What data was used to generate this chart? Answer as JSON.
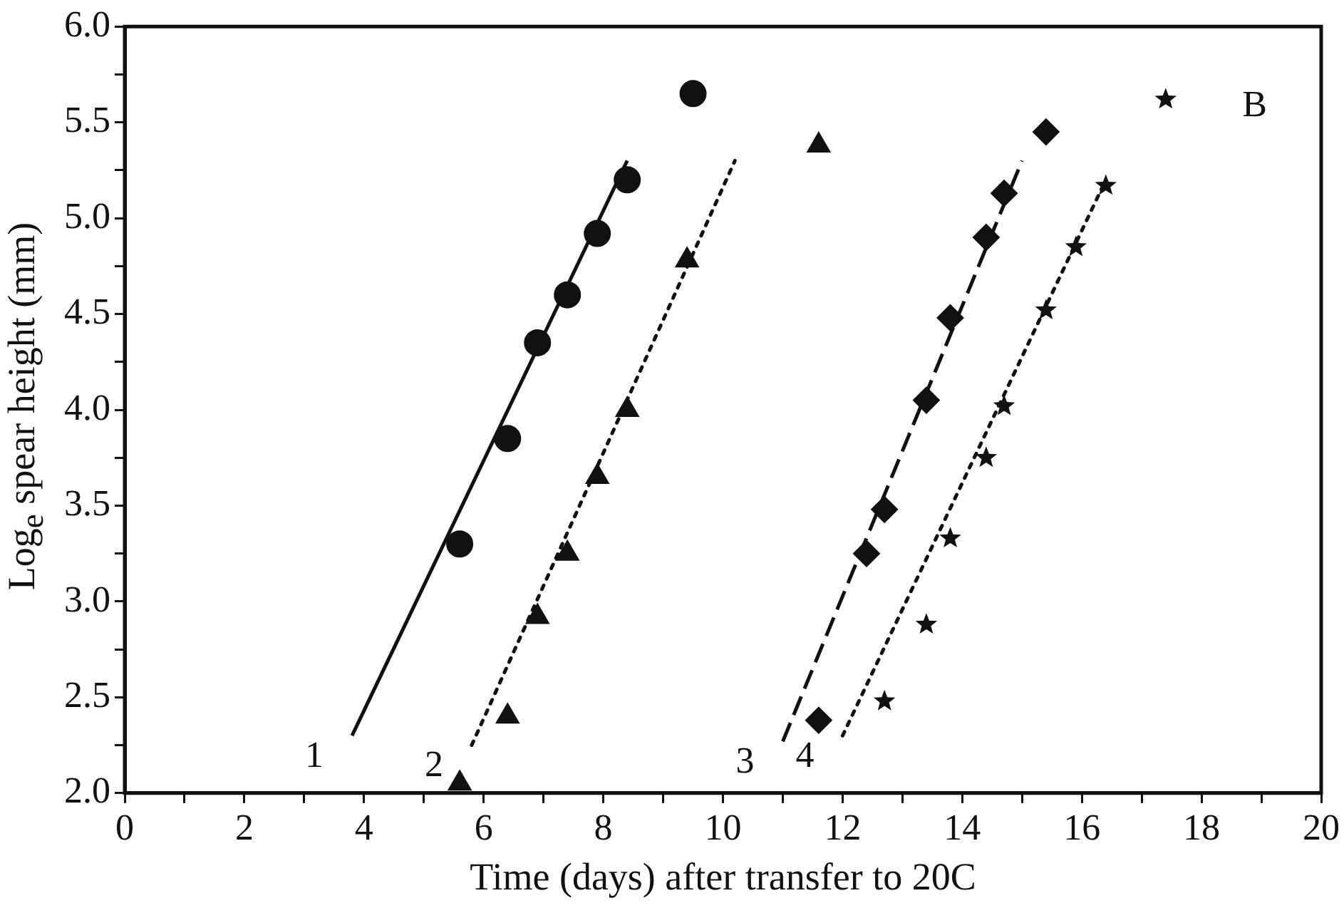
{
  "chart_data": {
    "type": "scatter",
    "xlabel": "Time (days) after transfer to 20C",
    "ylabel": "Log$_{e}$ spear height (mm)",
    "xlim": [
      0,
      20
    ],
    "ylim": [
      2,
      6
    ],
    "xticks": [
      0,
      {
        "value": 1,
        "label": null
      },
      2,
      {
        "value": 3,
        "label": null
      },
      4,
      {
        "value": 5,
        "label": null
      },
      6,
      {
        "value": 7,
        "label": null
      },
      8,
      {
        "value": 9,
        "label": null
      },
      10,
      {
        "value": 11,
        "label": null
      },
      12,
      {
        "value": 13,
        "label": null
      },
      14,
      {
        "value": 15,
        "label": null
      },
      16,
      {
        "value": 17,
        "label": null
      },
      18,
      {
        "value": 19,
        "label": null
      },
      20
    ],
    "yticks": [
      {
        "value": 2,
        "label": "2.0"
      },
      {
        "value": 2.25,
        "label": null
      },
      {
        "value": 2.5,
        "label": "2.5"
      },
      {
        "value": 2.75,
        "label": null
      },
      {
        "value": 3,
        "label": "3.0"
      },
      {
        "value": 3.25,
        "label": null
      },
      {
        "value": 3.5,
        "label": "3.5"
      },
      {
        "value": 3.75,
        "label": null
      },
      {
        "value": 4,
        "label": "4.0"
      },
      {
        "value": 4.25,
        "label": null
      },
      {
        "value": 4.5,
        "label": "4.5"
      },
      {
        "value": 4.75,
        "label": null
      },
      {
        "value": 5,
        "label": "5.0"
      },
      {
        "value": 5.25,
        "label": null
      },
      {
        "value": 5.5,
        "label": "5.5"
      },
      {
        "value": 5.75,
        "label": null
      },
      {
        "value": 6,
        "label": "6.0"
      }
    ],
    "grid": false,
    "legend": false,
    "series": [
      {
        "marker": "circle",
        "color": "#111111",
        "x": [
          5.6,
          6.4,
          6.9,
          7.4,
          7.9,
          8.4,
          9.5
        ],
        "values": [
          3.3,
          3.85,
          4.35,
          4.6,
          4.92,
          5.2,
          5.65
        ]
      },
      {
        "marker": "triangle",
        "color": "#111111",
        "x": [
          5.6,
          6.4,
          6.9,
          7.4,
          7.9,
          8.4,
          9.4,
          11.6
        ],
        "values": [
          2.05,
          2.4,
          2.92,
          3.25,
          3.65,
          4.0,
          4.78,
          5.38
        ]
      },
      {
        "marker": "diamond",
        "color": "#111111",
        "x": [
          11.6,
          12.4,
          12.7,
          13.4,
          13.8,
          14.4,
          14.7,
          15.4
        ],
        "values": [
          2.38,
          3.25,
          3.48,
          4.05,
          4.48,
          4.9,
          5.13,
          5.45
        ]
      },
      {
        "marker": "star",
        "color": "#111111",
        "x": [
          12.7,
          13.4,
          13.8,
          14.4,
          14.7,
          15.4,
          15.9,
          16.4,
          17.4
        ],
        "values": [
          2.48,
          2.88,
          3.33,
          3.75,
          4.02,
          4.52,
          4.85,
          5.17,
          5.62
        ]
      },
      {
        "type": "line",
        "marker": "none",
        "line_style": "solid",
        "color": "#111111",
        "x": [
          3.8,
          8.4
        ],
        "values": [
          2.3,
          5.3
        ]
      },
      {
        "type": "line",
        "marker": "none",
        "line_style": "dotted",
        "color": "#111111",
        "x": [
          5.8,
          10.2
        ],
        "values": [
          2.25,
          5.3
        ]
      },
      {
        "type": "line",
        "marker": "none",
        "line_style": "dashed",
        "color": "#111111",
        "x": [
          11.0,
          15.0
        ],
        "values": [
          2.27,
          5.3
        ]
      },
      {
        "type": "line",
        "marker": "none",
        "line_style": "dotted",
        "color": "#111111",
        "x": [
          12.0,
          16.4
        ],
        "values": [
          2.3,
          5.2
        ]
      }
    ],
    "annotations": [
      {
        "text": "1",
        "x": 3.8,
        "y": 2.3
      },
      {
        "text": "2",
        "x": 5.8,
        "y": 2.25
      },
      {
        "text": "3",
        "x": 11.0,
        "y": 2.27
      },
      {
        "text": "4",
        "x": 12.0,
        "y": 2.3
      },
      "B"
    ]
  }
}
